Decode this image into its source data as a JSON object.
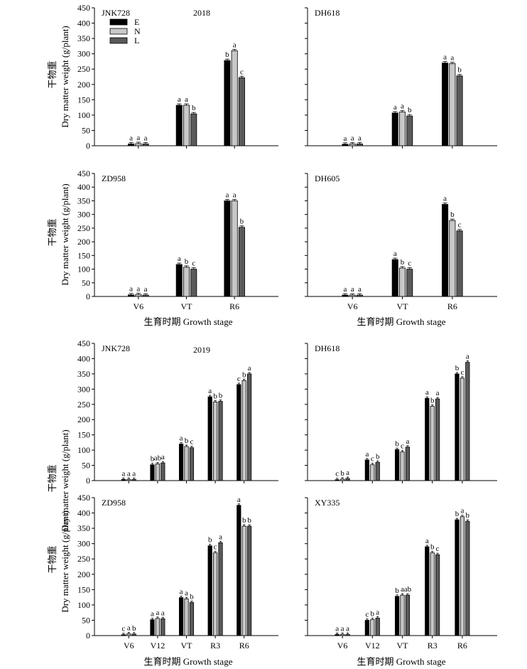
{
  "figure": {
    "y_label_cn": "干物重",
    "y_label_en": "Dry matter weight (g/plant)",
    "x_label": "生育时期 Growth stage",
    "legend": [
      {
        "label": "E",
        "color": "#000000"
      },
      {
        "label": "N",
        "color": "#c8c8c8"
      },
      {
        "label": "L",
        "color": "#5a5a5a"
      }
    ]
  },
  "chart_data": [
    {
      "type": "bar",
      "year": "2018",
      "title": "JNK728",
      "categories": [
        "V6",
        "VT",
        "R6"
      ],
      "ylim": [
        0,
        450
      ],
      "yticks": [
        0,
        50,
        100,
        150,
        200,
        250,
        300,
        350,
        400,
        450
      ],
      "series": [
        {
          "name": "E",
          "values": [
            6,
            132,
            278
          ]
        },
        {
          "name": "N",
          "values": [
            7,
            132,
            310
          ]
        },
        {
          "name": "L",
          "values": [
            6,
            104,
            222
          ]
        }
      ],
      "letters": [
        [
          "a",
          "a",
          "a"
        ],
        [
          "a",
          "a",
          "b"
        ],
        [
          "b",
          "a",
          "c"
        ]
      ]
    },
    {
      "type": "bar",
      "title": "DH618",
      "categories": [
        "V6",
        "VT",
        "R6"
      ],
      "ylim": [
        0,
        450
      ],
      "yticks": [
        0,
        50,
        100,
        150,
        200,
        250,
        300,
        350,
        400,
        450
      ],
      "series": [
        {
          "name": "E",
          "values": [
            5,
            107,
            270
          ]
        },
        {
          "name": "N",
          "values": [
            6,
            110,
            268
          ]
        },
        {
          "name": "L",
          "values": [
            6,
            97,
            228
          ]
        }
      ],
      "letters": [
        [
          "a",
          "a",
          "a"
        ],
        [
          "a",
          "a",
          "b"
        ],
        [
          "a",
          "a",
          "b"
        ]
      ]
    },
    {
      "type": "bar",
      "title": "ZD958",
      "categories": [
        "V6",
        "VT",
        "R6"
      ],
      "ylim": [
        0,
        450
      ],
      "yticks": [
        0,
        50,
        100,
        150,
        200,
        250,
        300,
        350,
        400,
        450
      ],
      "series": [
        {
          "name": "E",
          "values": [
            6,
            117,
            350
          ]
        },
        {
          "name": "N",
          "values": [
            7,
            107,
            350
          ]
        },
        {
          "name": "L",
          "values": [
            5,
            100,
            253
          ]
        }
      ],
      "letters": [
        [
          "a",
          "a",
          "a"
        ],
        [
          "a",
          "b",
          "c"
        ],
        [
          "a",
          "a",
          "b"
        ]
      ]
    },
    {
      "type": "bar",
      "title": "DH605",
      "categories": [
        "V6",
        "VT",
        "R6"
      ],
      "ylim": [
        0,
        450
      ],
      "yticks": [
        0,
        50,
        100,
        150,
        200,
        250,
        300,
        350,
        400,
        450
      ],
      "series": [
        {
          "name": "E",
          "values": [
            5,
            135,
            337
          ]
        },
        {
          "name": "N",
          "values": [
            5,
            104,
            278
          ]
        },
        {
          "name": "L",
          "values": [
            5,
            100,
            240
          ]
        }
      ],
      "letters": [
        [
          "a",
          "a",
          "a"
        ],
        [
          "a",
          "b",
          "c"
        ],
        [
          "a",
          "b",
          "c"
        ]
      ]
    },
    {
      "type": "bar",
      "year": "2019",
      "title": "JNK728",
      "categories": [
        "V6",
        "V12",
        "VT",
        "R3",
        "R6"
      ],
      "ylim": [
        0,
        450
      ],
      "yticks": [
        0,
        50,
        100,
        150,
        200,
        250,
        300,
        350,
        400,
        450
      ],
      "series": [
        {
          "name": "E",
          "values": [
            4,
            52,
            120,
            275,
            315
          ]
        },
        {
          "name": "N",
          "values": [
            4,
            55,
            112,
            258,
            328
          ]
        },
        {
          "name": "L",
          "values": [
            4,
            58,
            108,
            260,
            350
          ]
        }
      ],
      "letters": [
        [
          "a",
          "a",
          "a"
        ],
        [
          "b",
          "ab",
          "a"
        ],
        [
          "a",
          "b",
          "c"
        ],
        [
          "a",
          "b",
          "b"
        ],
        [
          "c",
          "b",
          "a"
        ]
      ]
    },
    {
      "type": "bar",
      "title": "DH618",
      "categories": [
        "V6",
        "V12",
        "VT",
        "R3",
        "R6"
      ],
      "ylim": [
        0,
        450
      ],
      "yticks": [
        0,
        50,
        100,
        150,
        200,
        250,
        300,
        350,
        400,
        450
      ],
      "series": [
        {
          "name": "E",
          "values": [
            3,
            68,
            102,
            270,
            350
          ]
        },
        {
          "name": "N",
          "values": [
            5,
            52,
            94,
            244,
            336
          ]
        },
        {
          "name": "L",
          "values": [
            7,
            60,
            110,
            268,
            388
          ]
        }
      ],
      "letters": [
        [
          "c",
          "b",
          "a"
        ],
        [
          "a",
          "c",
          "b"
        ],
        [
          "b",
          "c",
          "a"
        ],
        [
          "a",
          "b",
          "a"
        ],
        [
          "b",
          "c",
          "a"
        ]
      ]
    },
    {
      "type": "bar",
      "title": "ZD958",
      "categories": [
        "V6",
        "V12",
        "VT",
        "R3",
        "R6"
      ],
      "ylim": [
        0,
        450
      ],
      "yticks": [
        0,
        50,
        100,
        150,
        200,
        250,
        300,
        350,
        400,
        450
      ],
      "series": [
        {
          "name": "E",
          "values": [
            3,
            52,
            124,
            293,
            425
          ]
        },
        {
          "name": "N",
          "values": [
            6,
            56,
            120,
            270,
            357
          ]
        },
        {
          "name": "L",
          "values": [
            5,
            55,
            108,
            303,
            357
          ]
        }
      ],
      "letters": [
        [
          "c",
          "a",
          "b"
        ],
        [
          "a",
          "a",
          "a"
        ],
        [
          "a",
          "a",
          "b"
        ],
        [
          "b",
          "c",
          "a"
        ],
        [
          "a",
          "b",
          "b"
        ]
      ]
    },
    {
      "type": "bar",
      "title": "XY335",
      "categories": [
        "V6",
        "V12",
        "VT",
        "R3",
        "R6"
      ],
      "ylim": [
        0,
        450
      ],
      "yticks": [
        0,
        50,
        100,
        150,
        200,
        250,
        300,
        350,
        400,
        450
      ],
      "series": [
        {
          "name": "E",
          "values": [
            4,
            50,
            128,
            290,
            378
          ]
        },
        {
          "name": "N",
          "values": [
            4,
            52,
            132,
            270,
            388
          ]
        },
        {
          "name": "L",
          "values": [
            4,
            57,
            132,
            264,
            373
          ]
        }
      ],
      "letters": [
        [
          "a",
          "a",
          "a"
        ],
        [
          "c",
          "b",
          "a"
        ],
        [
          "b",
          "a",
          "ab"
        ],
        [
          "a",
          "b",
          "c"
        ],
        [
          "b",
          "a",
          "b"
        ]
      ]
    }
  ]
}
